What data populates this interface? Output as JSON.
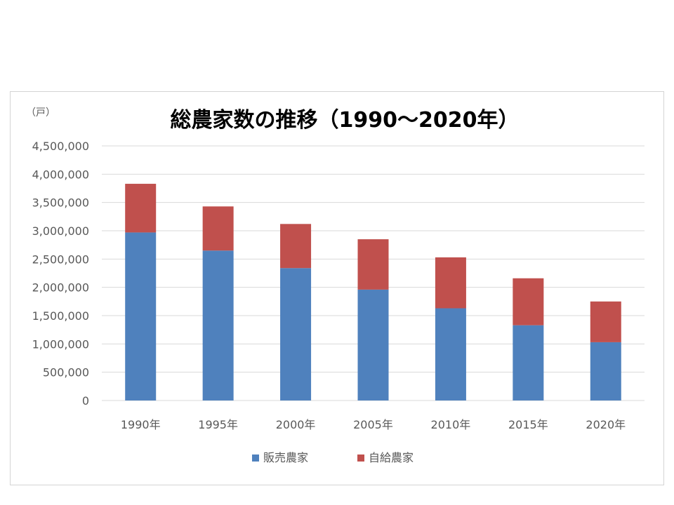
{
  "chart_data": {
    "type": "bar",
    "stacked": true,
    "title": "総農家数の推移（1990～2020年）",
    "unit_label": "（戸）",
    "categories": [
      "1990年",
      "1995年",
      "2000年",
      "2005年",
      "2010年",
      "2015年",
      "2020年"
    ],
    "series": [
      {
        "name": "販売農家",
        "color": "#4f81bd",
        "values": [
          2970000,
          2650000,
          2340000,
          1960000,
          1630000,
          1330000,
          1030000
        ]
      },
      {
        "name": "自給農家",
        "color": "#c0504d",
        "values": [
          860000,
          780000,
          780000,
          890000,
          900000,
          830000,
          720000
        ]
      }
    ],
    "ylim": [
      0,
      4500000
    ],
    "yticks": [
      0,
      500000,
      1000000,
      1500000,
      2000000,
      2500000,
      3000000,
      3500000,
      4000000,
      4500000
    ],
    "ytick_labels": [
      "0",
      "500,000",
      "1,000,000",
      "1,500,000",
      "2,000,000",
      "2,500,000",
      "3,000,000",
      "3,500,000",
      "4,000,000",
      "4,500,000"
    ],
    "grid": true,
    "legend_position": "bottom"
  }
}
